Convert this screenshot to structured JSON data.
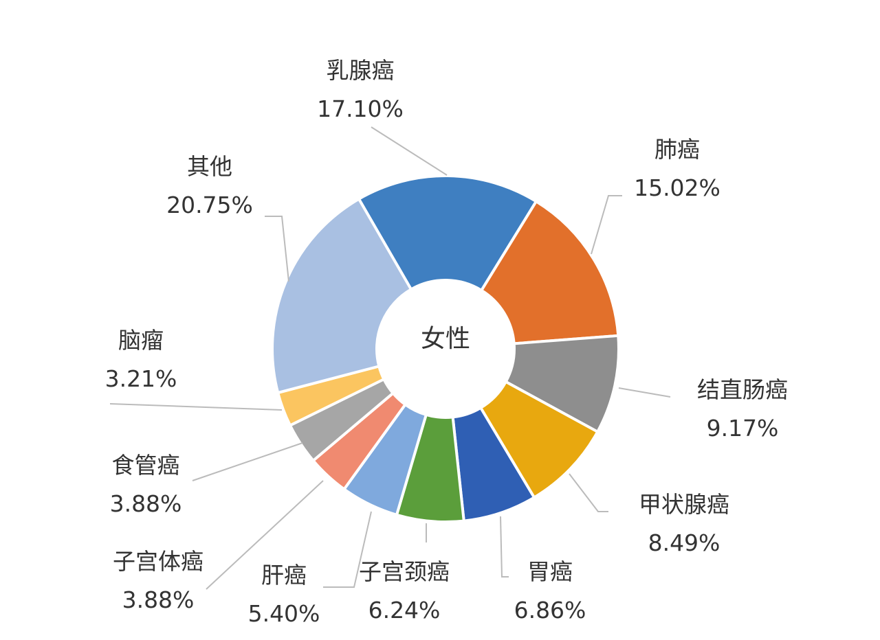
{
  "chart_data": {
    "type": "pie",
    "donut": true,
    "center_label": "女性",
    "categories": [
      "乳腺癌",
      "肺癌",
      "结直肠癌",
      "甲状腺癌",
      "胃癌",
      "子宫颈癌",
      "肝癌",
      "子宫体癌",
      "食管癌",
      "脑瘤",
      "其他"
    ],
    "values": [
      17.1,
      15.02,
      9.17,
      8.49,
      6.86,
      6.24,
      5.4,
      3.88,
      3.88,
      3.21,
      20.75
    ],
    "value_labels": [
      "17.10%",
      "15.02%",
      "9.17%",
      "8.49%",
      "6.86%",
      "6.24%",
      "5.40%",
      "3.88%",
      "3.88%",
      "3.21%",
      "20.75%"
    ],
    "colors": [
      "#3f7fc1",
      "#e2702b",
      "#8e8e8e",
      "#e8a80f",
      "#2f5fb4",
      "#5b9e3b",
      "#7fa9dd",
      "#f08a70",
      "#a6a6a6",
      "#fbc560",
      "#a9c0e2"
    ],
    "legend": "none"
  }
}
